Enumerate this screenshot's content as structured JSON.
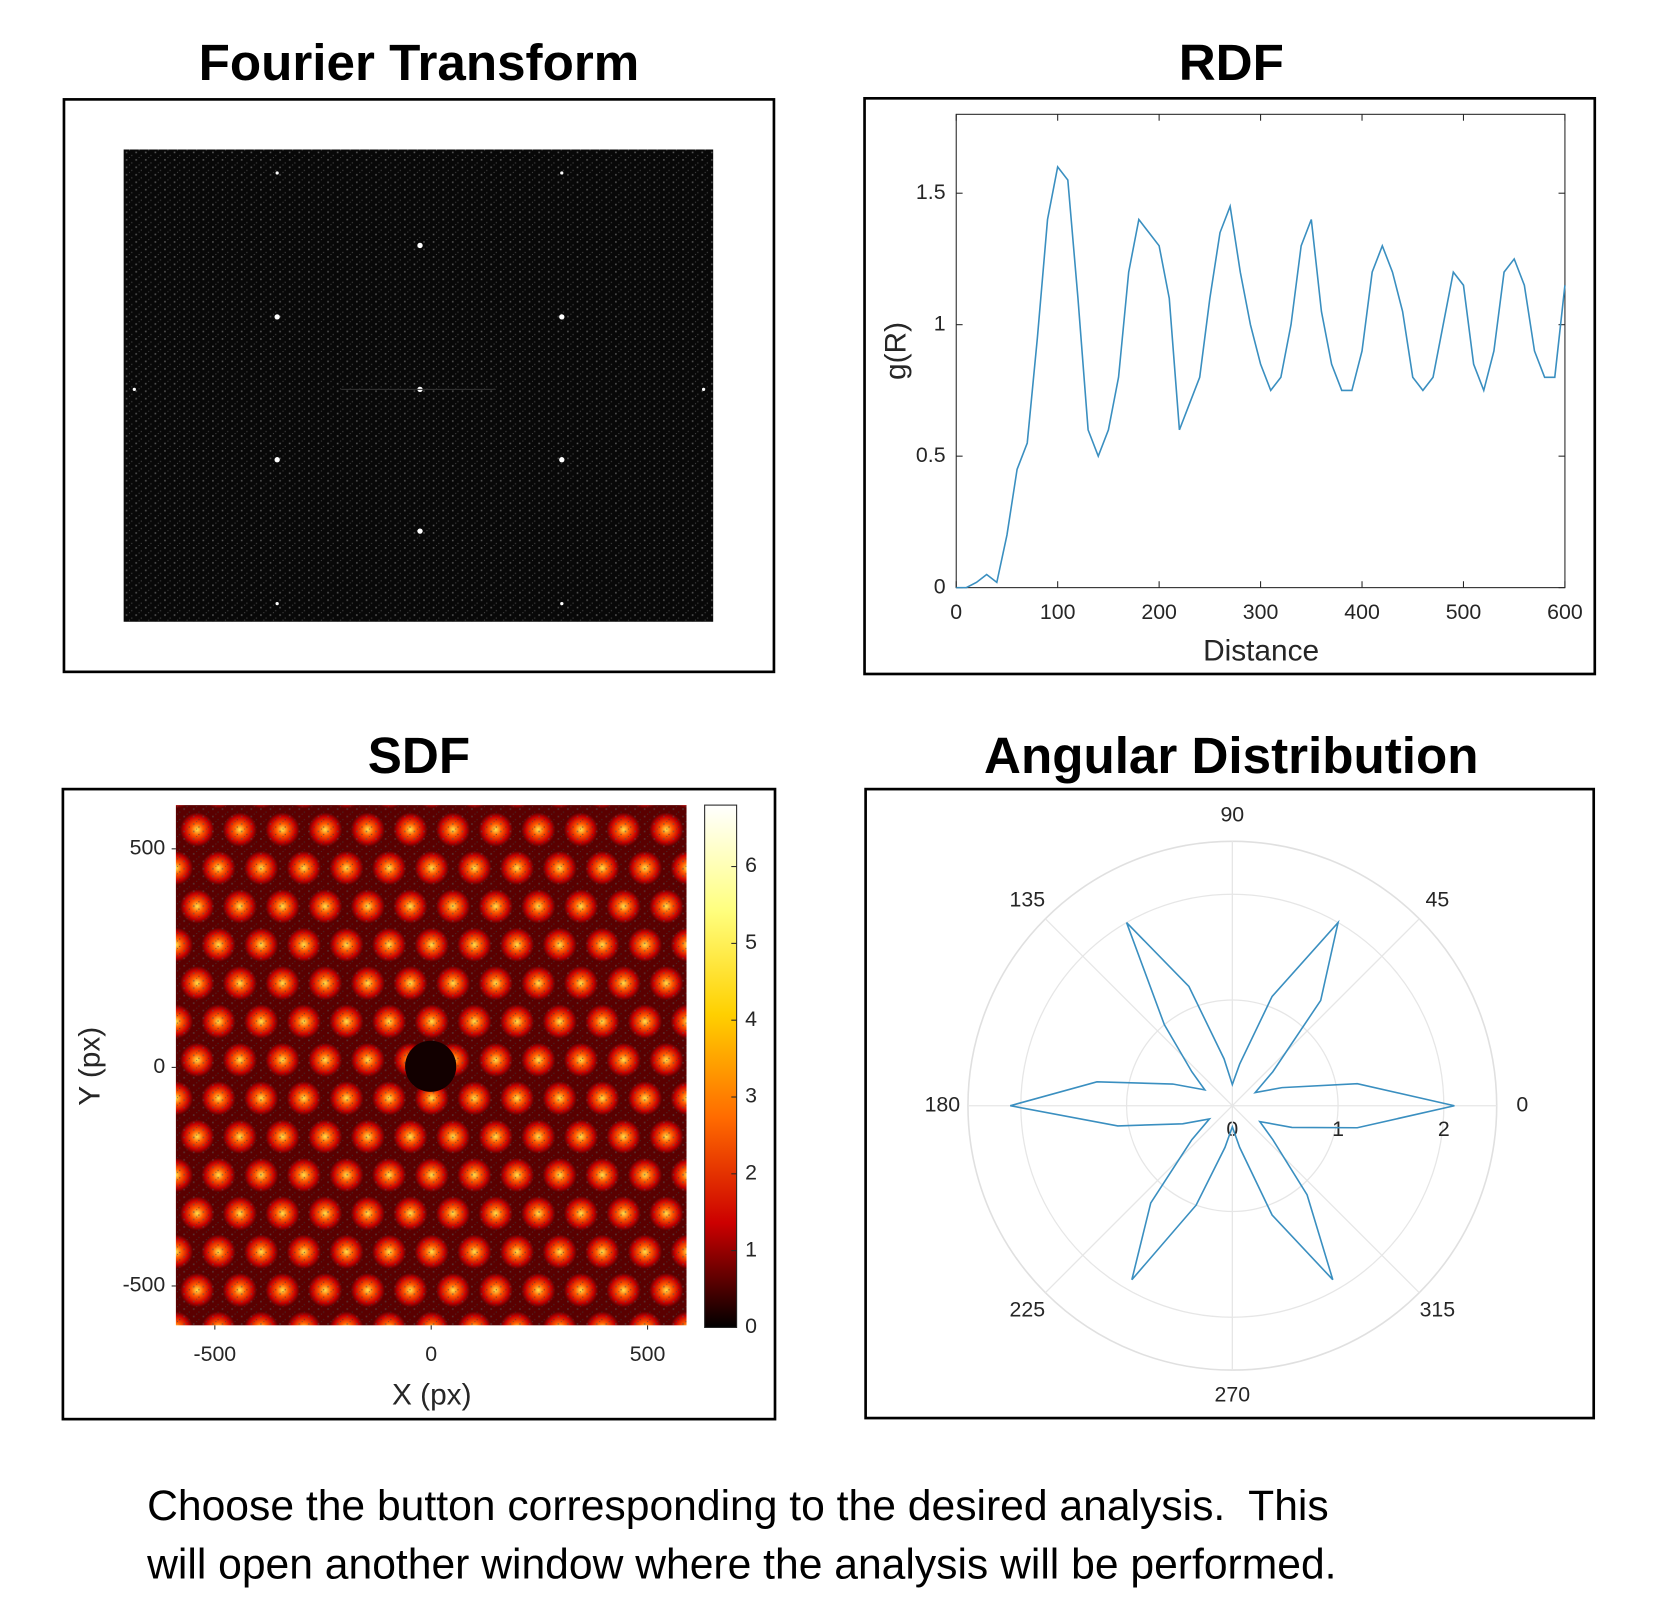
{
  "chart_data": [
    {
      "type": "image",
      "title": "Fourier Transform"
    },
    {
      "type": "line",
      "title": "RDF",
      "xlabel": "Distance",
      "ylabel": "g(R)",
      "x": [
        0,
        10,
        20,
        30,
        40,
        50,
        60,
        70,
        80,
        90,
        100,
        110,
        120,
        130,
        140,
        150,
        160,
        170,
        180,
        190,
        200,
        210,
        220,
        230,
        240,
        250,
        260,
        270,
        280,
        290,
        300,
        310,
        320,
        330,
        340,
        350,
        360,
        370,
        380,
        390,
        400,
        410,
        420,
        430,
        440,
        450,
        460,
        470,
        480,
        490,
        500,
        510,
        520,
        530,
        540,
        550,
        560,
        570,
        580,
        590,
        600
      ],
      "series": [
        {
          "name": "g(R)",
          "color": "#3a8fc0",
          "values": [
            0,
            0,
            0.02,
            0.05,
            0.02,
            0.2,
            0.45,
            0.55,
            0.95,
            1.4,
            1.6,
            1.55,
            1.1,
            0.6,
            0.5,
            0.6,
            0.8,
            1.2,
            1.4,
            1.35,
            1.3,
            1.1,
            0.6,
            0.7,
            0.8,
            1.1,
            1.35,
            1.45,
            1.2,
            1.0,
            0.85,
            0.75,
            0.8,
            1.0,
            1.3,
            1.4,
            1.05,
            0.85,
            0.75,
            0.75,
            0.9,
            1.2,
            1.3,
            1.2,
            1.05,
            0.8,
            0.75,
            0.8,
            1.0,
            1.2,
            1.15,
            0.85,
            0.75,
            0.9,
            1.2,
            1.25,
            1.15,
            0.9,
            0.8,
            0.8,
            1.15
          ]
        }
      ],
      "xlim": [
        0,
        600
      ],
      "ylim": [
        0,
        1.8
      ],
      "xticks": [
        0,
        100,
        200,
        300,
        400,
        500,
        600
      ],
      "yticks": [
        0,
        0.5,
        1,
        1.5
      ]
    },
    {
      "type": "heatmap",
      "title": "SDF",
      "xlabel": "X (px)",
      "ylabel": "Y (px)",
      "colormap": "hot",
      "xlim": [
        -590,
        590
      ],
      "ylim": [
        -590,
        600
      ],
      "xticks": [
        -500,
        0,
        500
      ],
      "yticks": [
        -500,
        0,
        500
      ],
      "clim": [
        0,
        6.8
      ],
      "cticks": [
        0,
        1,
        2,
        3,
        4,
        5,
        6
      ]
    },
    {
      "type": "polar",
      "title": "Angular Distribution",
      "color": "#3a8fc0",
      "theta": [
        0,
        10,
        20,
        30,
        40,
        50,
        60,
        70,
        80,
        90,
        100,
        110,
        120,
        130,
        140,
        150,
        160,
        170,
        180,
        190,
        200,
        210,
        220,
        230,
        240,
        250,
        260,
        270,
        280,
        290,
        300,
        310,
        320,
        330,
        340,
        350
      ],
      "values": [
        2.1,
        1.2,
        0.5,
        0.25,
        0.5,
        1.3,
        2.0,
        1.1,
        0.4,
        0.2,
        0.45,
        1.2,
        2.0,
        1.0,
        0.5,
        0.3,
        0.6,
        1.3,
        2.1,
        1.1,
        0.5,
        0.25,
        0.5,
        1.2,
        1.9,
        1.0,
        0.4,
        0.2,
        0.4,
        1.1,
        1.9,
        1.1,
        0.5,
        0.3,
        0.6,
        1.2
      ],
      "rlim": [
        0,
        2.5
      ],
      "rticks": [
        0,
        1,
        2
      ],
      "thetaticks": [
        0,
        45,
        90,
        135,
        180,
        225,
        270,
        315
      ]
    }
  ],
  "instructions": [
    "Choose the button corresponding to the desired analysis.  This",
    "will open another window where the analysis will be performed."
  ]
}
